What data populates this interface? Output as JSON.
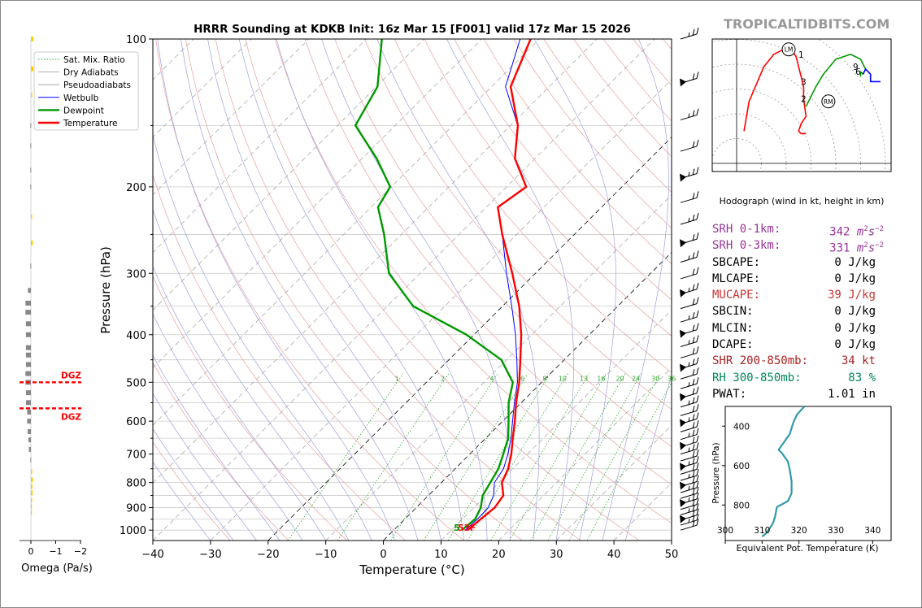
{
  "title": "HRRR Sounding at KDKB Init: 16z Mar 15 [F001] valid 17z Mar 15 2026",
  "brand": "TROPICALTIDBITS.COM",
  "colors": {
    "temperature": "#ff0000",
    "dewpoint": "#009900",
    "wetbulb": "#0000ff",
    "dry_adiabat": "#e8a0a0",
    "moist_adiabat": "#a0a0e0",
    "mixing_ratio": "#33aa33",
    "srh": "#993399",
    "mucape": "#cc3333",
    "shr": "#aa2222",
    "rh": "#00875a",
    "omega_up": "#ffcc00",
    "omega_down": "#888888",
    "theta_e": "#3399aa",
    "hodo_0_3": "#ff0000",
    "hodo_3_6": "#009900",
    "hodo_6_9": "#0000ff"
  },
  "chart_data": [
    {
      "id": "skewt",
      "type": "line",
      "xlabel": "Temperature (°C)",
      "ylabel": "Pressure (hPa)",
      "x_ticks": [
        "−40",
        "−30",
        "−20",
        "−10",
        "0",
        "10",
        "20",
        "30",
        "40",
        "50"
      ],
      "y_ticks": [
        "100",
        "200",
        "300",
        "400",
        "500",
        "600",
        "700",
        "800",
        "900",
        "1000"
      ],
      "xlim": [
        -40,
        50
      ],
      "ylim": [
        1050,
        100
      ],
      "y_scale": "log",
      "skew": "45deg",
      "legend": {
        "placement": "top-left",
        "entries": [
          "Sat. Mix. Ratio",
          "Dry Adiabats",
          "Pseudoadiabats",
          "Wetbulb",
          "Dewpoint",
          "Temperature"
        ]
      },
      "mixing_ratio_labels": [
        "1",
        "2",
        "4",
        "6",
        "8",
        "10",
        "13",
        "16",
        "20",
        "24",
        "30",
        "36"
      ],
      "series": [
        {
          "name": "Temperature",
          "points": [
            [
              12.8,
              1000
            ],
            [
              13.2,
              950
            ],
            [
              13.6,
              900
            ],
            [
              13,
              850
            ],
            [
              10.5,
              800
            ],
            [
              9.2,
              750
            ],
            [
              7.2,
              700
            ],
            [
              4.7,
              650
            ],
            [
              2.1,
              600
            ],
            [
              -0.9,
              550
            ],
            [
              -3.9,
              500
            ],
            [
              -7.6,
              450
            ],
            [
              -11.8,
              400
            ],
            [
              -17.1,
              350
            ],
            [
              -24,
              300
            ],
            [
              -32.5,
              250
            ],
            [
              -38,
              220
            ],
            [
              -36.6,
              200
            ],
            [
              -43.5,
              175
            ],
            [
              -48.7,
              150
            ],
            [
              -56.7,
              125
            ],
            [
              -61.5,
              100
            ]
          ]
        },
        {
          "name": "Wetbulb",
          "points": [
            [
              12.4,
              1000
            ],
            [
              12.6,
              950
            ],
            [
              12.5,
              900
            ],
            [
              11.3,
              850
            ],
            [
              9.2,
              800
            ],
            [
              8.4,
              750
            ],
            [
              6.6,
              700
            ],
            [
              4.4,
              650
            ],
            [
              1.7,
              600
            ],
            [
              -1.2,
              550
            ],
            [
              -4.2,
              500
            ],
            [
              -8.2,
              450
            ],
            [
              -12.8,
              400
            ],
            [
              -18.4,
              350
            ],
            [
              -25,
              300
            ],
            [
              -32.5,
              250
            ],
            [
              -38,
              220
            ],
            [
              -36.6,
              200
            ],
            [
              -43.5,
              175
            ],
            [
              -48.7,
              150
            ],
            [
              -57.6,
              125
            ],
            [
              -63.3,
              100
            ]
          ]
        },
        {
          "name": "Dewpoint",
          "points": [
            [
              11.8,
              1000
            ],
            [
              12.2,
              950
            ],
            [
              11.2,
              900
            ],
            [
              9.4,
              850
            ],
            [
              8.5,
              800
            ],
            [
              7.5,
              750
            ],
            [
              5.8,
              700
            ],
            [
              3.9,
              650
            ],
            [
              1,
              600
            ],
            [
              -2.2,
              550
            ],
            [
              -5,
              500
            ],
            [
              -10.9,
              450
            ],
            [
              -21.3,
              400
            ],
            [
              -35.5,
              350
            ],
            [
              -45.4,
              300
            ],
            [
              -53,
              250
            ],
            [
              -58.8,
              220
            ],
            [
              -60.2,
              200
            ],
            [
              -67.5,
              175
            ],
            [
              -76.9,
              150
            ],
            [
              -79.8,
              125
            ],
            [
              -87.3,
              100
            ]
          ]
        }
      ],
      "surface_labels": {
        "dewpoint": "5",
        "temperature": "53F"
      },
      "wind_barbs_count": 40
    },
    {
      "id": "omega",
      "type": "bar",
      "xlabel": "Omega (Pa/s)",
      "x_ticks": [
        "0",
        "−1",
        "−2"
      ],
      "xlim": [
        0.25,
        -2
      ],
      "dgz_label": "DGZ",
      "dgz_pressures": [
        500,
        565
      ],
      "levels": [
        100,
        115,
        130,
        150,
        165,
        185,
        200,
        230,
        260,
        290,
        325,
        345,
        360,
        380,
        400,
        425,
        440,
        460,
        480,
        500,
        525,
        550,
        575,
        600,
        630,
        655,
        685,
        720,
        760,
        790,
        815,
        840,
        870,
        895,
        920
      ],
      "values": [
        -0.1,
        -0.1,
        -0.05,
        0.02,
        0.02,
        0.02,
        0.02,
        -0.05,
        -0.08,
        0.02,
        0.12,
        0.22,
        0.22,
        0.2,
        0.2,
        0.2,
        0.2,
        0.2,
        0.22,
        0.22,
        0.2,
        0.2,
        0.15,
        0.15,
        0.13,
        0.1,
        0.08,
        0.02,
        -0.05,
        -0.08,
        -0.06,
        -0.07,
        -0.05,
        -0.04,
        -0.04
      ]
    },
    {
      "id": "hodograph",
      "type": "line",
      "caption": "Hodograph (wind in kt, height in km)",
      "ring_labels": [
        "10",
        "20",
        "30",
        "40",
        "50"
      ],
      "height_labels": [
        "1",
        "2",
        "3",
        "6",
        "9"
      ],
      "storm_motion_labels": [
        "LM",
        "RM"
      ],
      "series": [
        {
          "name": "0-3 km",
          "points": [
            [
              3,
              13
            ],
            [
              5,
              25
            ],
            [
              8,
              32
            ],
            [
              11,
              39
            ],
            [
              15,
              44
            ],
            [
              19,
              46
            ],
            [
              22,
              46
            ],
            [
              24,
              43
            ],
            [
              27,
              31
            ],
            [
              27,
              26
            ],
            [
              28,
              19
            ],
            [
              26,
              16
            ],
            [
              25,
              13
            ],
            [
              26,
              12
            ],
            [
              28,
              12
            ]
          ]
        },
        {
          "name": "3-6 km",
          "points": [
            [
              28,
              23
            ],
            [
              30,
              27
            ],
            [
              32,
              31
            ],
            [
              35,
              36
            ],
            [
              40,
              42
            ],
            [
              46,
              44
            ],
            [
              50,
              42
            ],
            [
              52,
              38
            ],
            [
              51,
              36
            ],
            [
              50,
              37
            ],
            [
              50,
              35
            ]
          ]
        },
        {
          "name": "6-9 km",
          "points": [
            [
              51,
              36
            ],
            [
              52,
              38
            ],
            [
              53,
              37
            ],
            [
              54,
              36
            ],
            [
              54,
              33
            ],
            [
              56,
              33
            ],
            [
              58,
              33
            ]
          ]
        }
      ],
      "markers": {
        "LM": [
          21,
          46
        ],
        "RM": [
          37,
          25
        ],
        "1": [
          26,
          44
        ],
        "2": [
          27,
          26
        ],
        "3": [
          27,
          33
        ],
        "6": [
          49,
          37
        ],
        "9": [
          48,
          39
        ]
      }
    },
    {
      "id": "theta_e",
      "type": "line",
      "xlabel": "Equivalent Pot. Temperature (K)",
      "ylabel": "Pressure (hPa)",
      "x_ticks": [
        "300",
        "310",
        "320",
        "330",
        "340"
      ],
      "y_ticks": [
        "400",
        "600",
        "800"
      ],
      "xlim": [
        300,
        345
      ],
      "ylim": [
        980,
        300
      ],
      "series": [
        {
          "name": "theta-e",
          "points": [
            [
              321.5,
              300
            ],
            [
              319.5,
              340
            ],
            [
              318.5,
              380
            ],
            [
              318,
              410
            ],
            [
              317.5,
              440
            ],
            [
              316,
              480
            ],
            [
              314.5,
              520
            ],
            [
              315.5,
              540
            ],
            [
              317,
              580
            ],
            [
              317.5,
              620
            ],
            [
              318,
              680
            ],
            [
              318,
              740
            ],
            [
              317,
              780
            ],
            [
              314,
              810
            ],
            [
              313.5,
              860
            ],
            [
              313,
              890
            ],
            [
              312,
              920
            ],
            [
              311,
              945
            ],
            [
              310,
              960
            ]
          ]
        }
      ]
    }
  ],
  "stats": [
    {
      "label": "SRH 0-1km:",
      "value": "342",
      "unit": "m",
      "sup": "2",
      "unit2": "s",
      "sup2": "−2",
      "color": "#993399"
    },
    {
      "label": "SRH 0-3km:",
      "value": "331",
      "unit": "m",
      "sup": "2",
      "unit2": "s",
      "sup2": "−2",
      "color": "#993399"
    },
    {
      "label": "SBCAPE:",
      "value": "0 J/kg",
      "color": "#000000"
    },
    {
      "label": "MLCAPE:",
      "value": "0 J/kg",
      "color": "#000000"
    },
    {
      "label": "MUCAPE:",
      "value": "39 J/kg",
      "color": "#cc3333"
    },
    {
      "label": "SBCIN:",
      "value": "0 J/kg",
      "color": "#000000"
    },
    {
      "label": "MLCIN:",
      "value": "0 J/kg",
      "color": "#000000"
    },
    {
      "label": "DCAPE:",
      "value": "0 J/kg",
      "color": "#000000"
    },
    {
      "label": "SHR 200-850mb:",
      "value": "34 kt",
      "color": "#aa2222"
    },
    {
      "label": "RH 300-850mb:",
      "value": "83 %",
      "color": "#00875a"
    },
    {
      "label": "PWAT:",
      "value": "1.01 in",
      "color": "#000000"
    }
  ]
}
